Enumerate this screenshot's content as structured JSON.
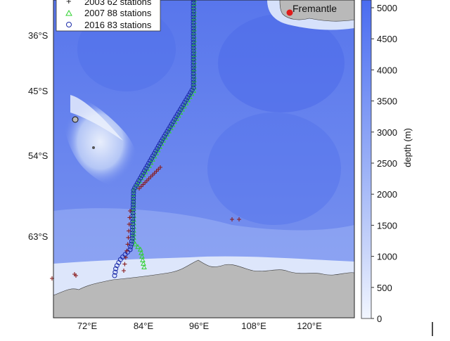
{
  "map": {
    "legend": {
      "entries": [
        {
          "label": "2003 62 stations",
          "marker": "plus",
          "color": "#8a1c1c"
        },
        {
          "label": "2007 88 stations",
          "marker": "triangle",
          "color": "#2fd12f"
        },
        {
          "label": "2016 83 stations",
          "marker": "circle",
          "color": "#1a2aa8"
        }
      ]
    },
    "city": {
      "label": "Fremantle",
      "color": "#e01b1b"
    },
    "lat_ticks": [
      "36°S",
      "45°S",
      "54°S",
      "63°S"
    ],
    "lon_ticks": [
      "72°E",
      "84°E",
      "96°E",
      "108°E",
      "120°E"
    ],
    "colorbar": {
      "label": "depth (m)",
      "ticks": [
        "5000",
        "4500",
        "4000",
        "3500",
        "3000",
        "2500",
        "2000",
        "1500",
        "1000",
        "500",
        "0"
      ],
      "colors": {
        "deep": "#4a6cf0",
        "shallow": "#eef3ff"
      }
    },
    "colors": {
      "land": "#b9b9b9",
      "ocean_deep": "#5b7ff0",
      "ocean_shallow": "#dfe8fb"
    }
  }
}
